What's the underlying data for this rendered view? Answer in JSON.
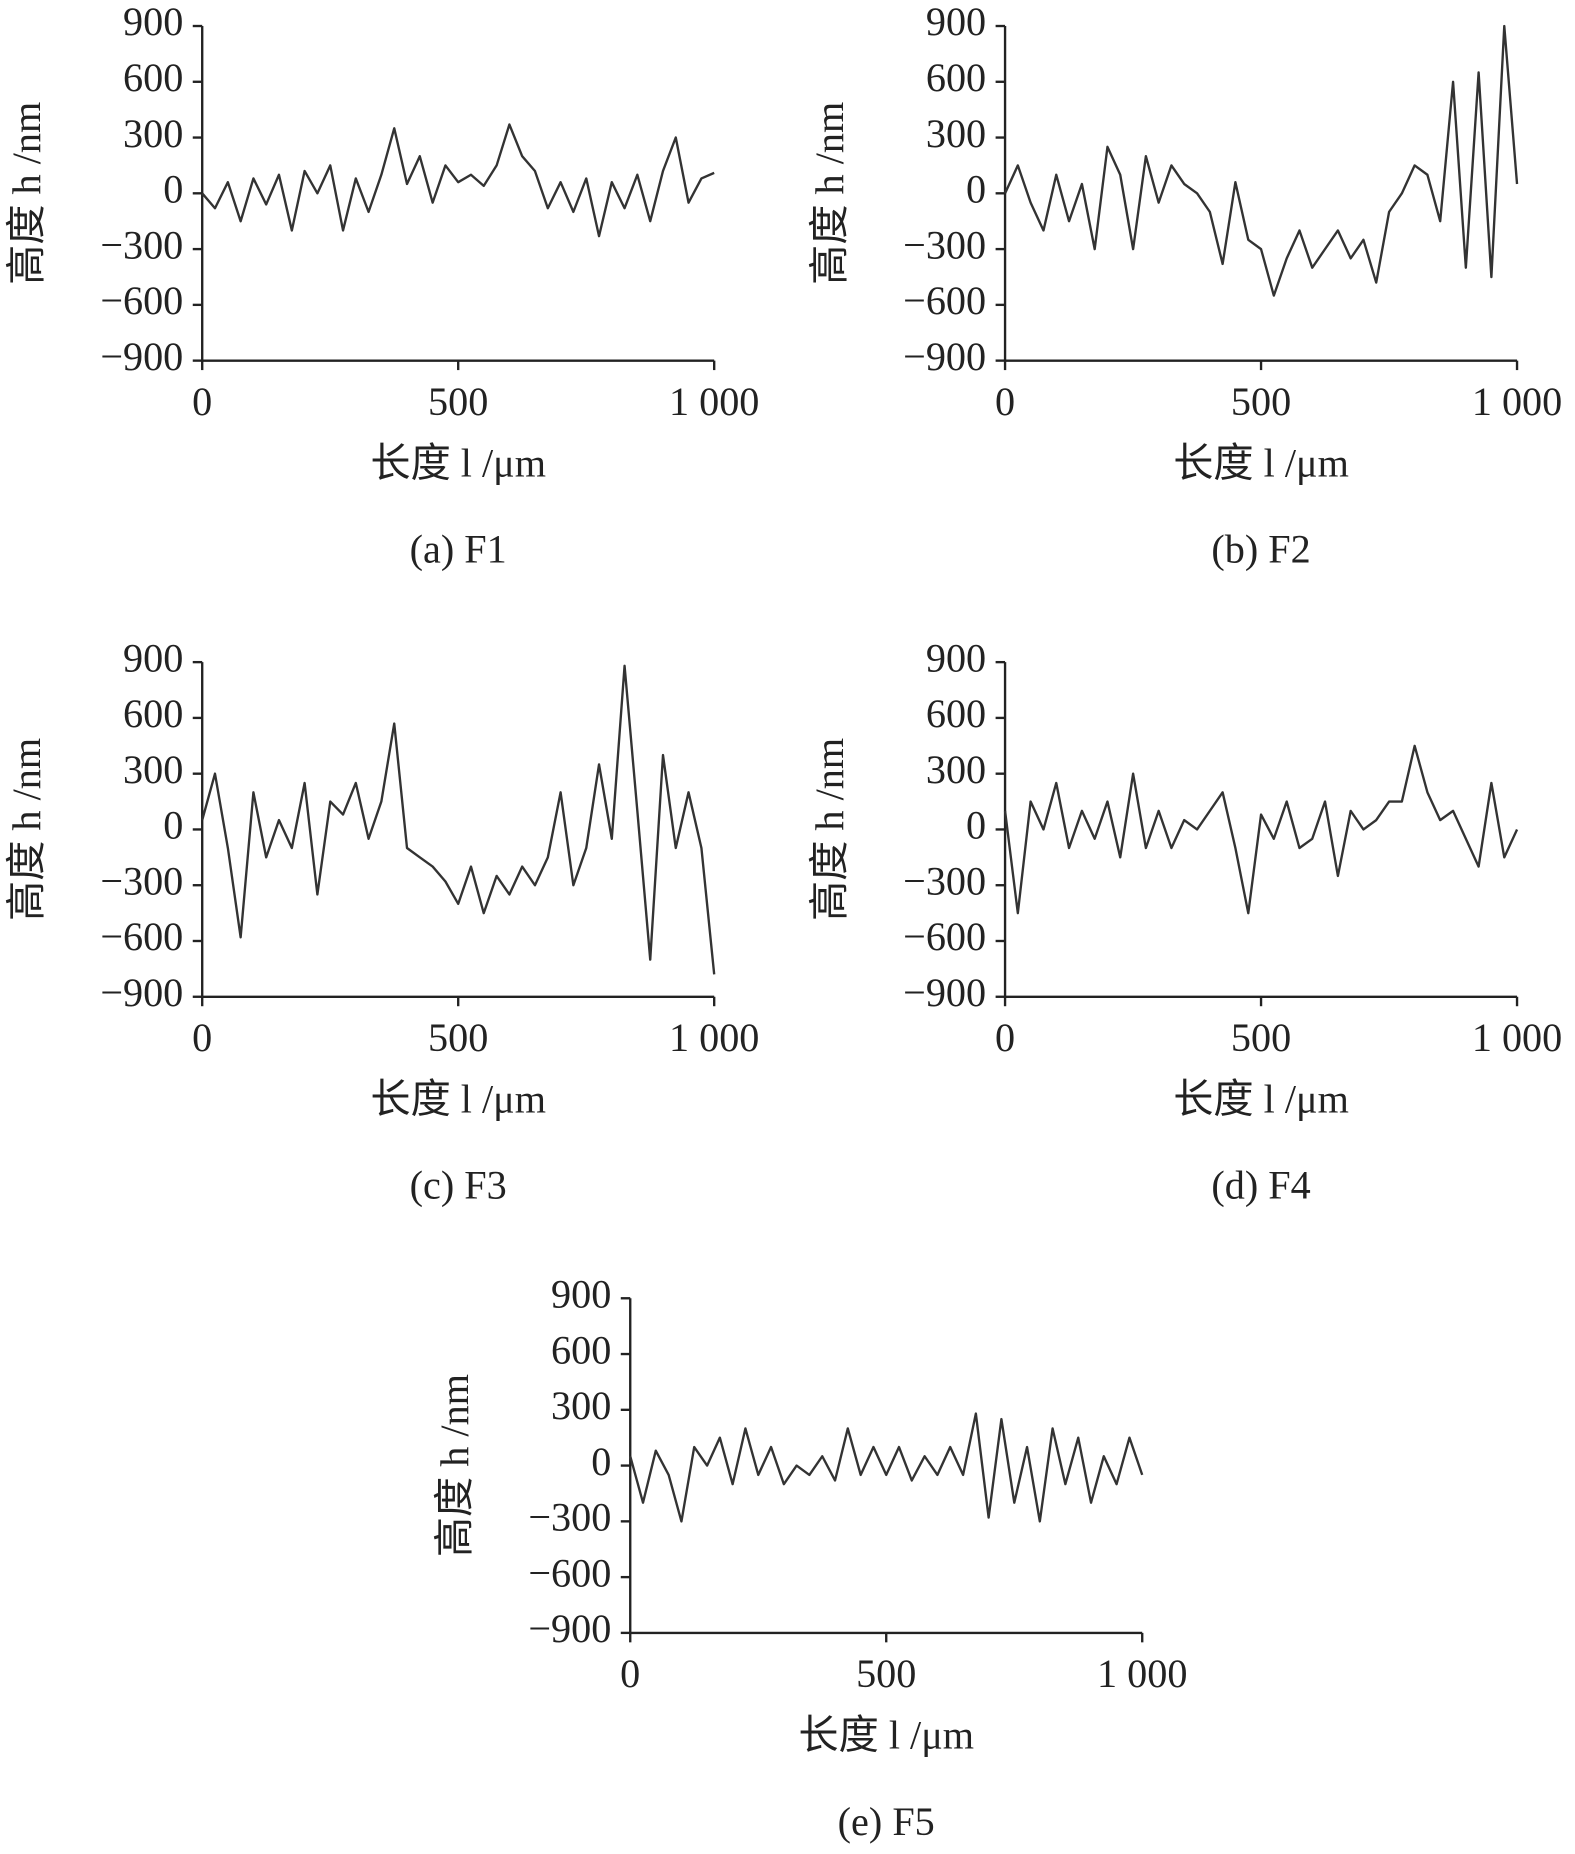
{
  "chart_data": [
    {
      "type": "line",
      "title": "(a) F1",
      "xlabel": "长度 l /μm",
      "ylabel": "高度 h /nm",
      "xlim": [
        0,
        1000
      ],
      "ylim": [
        -900,
        900
      ],
      "xticks": [
        0,
        500,
        {
          "value": 1000,
          "label": "1 000"
        }
      ],
      "yticks": [
        {
          "value": -900,
          "label": "−900"
        },
        {
          "value": -600,
          "label": "−600"
        },
        {
          "value": -300,
          "label": "−300"
        },
        0,
        300,
        600,
        900
      ],
      "x": [
        0,
        25,
        50,
        75,
        100,
        125,
        150,
        175,
        200,
        225,
        250,
        275,
        300,
        325,
        350,
        375,
        400,
        425,
        450,
        475,
        500,
        525,
        550,
        575,
        600,
        625,
        650,
        675,
        700,
        725,
        750,
        775,
        800,
        825,
        850,
        875,
        900,
        925,
        950,
        975,
        1000
      ],
      "series": [
        {
          "color": "#333333",
          "values": [
            0,
            -80,
            60,
            -150,
            80,
            -60,
            100,
            -200,
            120,
            0,
            150,
            -200,
            80,
            -100,
            100,
            350,
            50,
            200,
            -50,
            150,
            60,
            100,
            40,
            150,
            370,
            200,
            120,
            -80,
            60,
            -100,
            80,
            -230,
            60,
            -80,
            100,
            -150,
            120,
            300,
            -50,
            80,
            110
          ]
        }
      ]
    },
    {
      "type": "line",
      "title": "(b) F2",
      "xlabel": "长度 l /μm",
      "ylabel": "高度 h /nm",
      "xlim": [
        0,
        1000
      ],
      "ylim": [
        -900,
        900
      ],
      "xticks": [
        0,
        500,
        {
          "value": 1000,
          "label": "1 000"
        }
      ],
      "yticks": [
        {
          "value": -900,
          "label": "−900"
        },
        {
          "value": -600,
          "label": "−600"
        },
        {
          "value": -300,
          "label": "−300"
        },
        0,
        300,
        600,
        900
      ],
      "x": [
        0,
        25,
        50,
        75,
        100,
        125,
        150,
        175,
        200,
        225,
        250,
        275,
        300,
        325,
        350,
        375,
        400,
        425,
        450,
        475,
        500,
        525,
        550,
        575,
        600,
        625,
        650,
        675,
        700,
        725,
        750,
        775,
        800,
        825,
        850,
        875,
        900,
        925,
        950,
        975,
        1000
      ],
      "series": [
        {
          "color": "#333333",
          "values": [
            0,
            150,
            -50,
            -200,
            100,
            -150,
            50,
            -300,
            250,
            100,
            -300,
            200,
            -50,
            150,
            50,
            0,
            -100,
            -380,
            60,
            -250,
            -300,
            -550,
            -350,
            -200,
            -400,
            -300,
            -200,
            -350,
            -250,
            -480,
            -100,
            0,
            150,
            100,
            -150,
            600,
            -400,
            650,
            -450,
            900,
            50
          ]
        }
      ]
    },
    {
      "type": "line",
      "title": "(c) F3",
      "xlabel": "长度 l /μm",
      "ylabel": "高度 h /nm",
      "xlim": [
        0,
        1000
      ],
      "ylim": [
        -900,
        900
      ],
      "xticks": [
        0,
        500,
        {
          "value": 1000,
          "label": "1 000"
        }
      ],
      "yticks": [
        {
          "value": -900,
          "label": "−900"
        },
        {
          "value": -600,
          "label": "−600"
        },
        {
          "value": -300,
          "label": "−300"
        },
        0,
        300,
        600,
        900
      ],
      "x": [
        0,
        25,
        50,
        75,
        100,
        125,
        150,
        175,
        200,
        225,
        250,
        275,
        300,
        325,
        350,
        375,
        400,
        425,
        450,
        475,
        500,
        525,
        550,
        575,
        600,
        625,
        650,
        675,
        700,
        725,
        750,
        775,
        800,
        825,
        850,
        875,
        900,
        925,
        950,
        975,
        1000
      ],
      "series": [
        {
          "color": "#333333",
          "values": [
            50,
            300,
            -100,
            -580,
            200,
            -150,
            50,
            -100,
            250,
            -350,
            150,
            80,
            250,
            -50,
            150,
            570,
            -100,
            -150,
            -200,
            -280,
            -400,
            -200,
            -450,
            -250,
            -350,
            -200,
            -300,
            -150,
            200,
            -300,
            -100,
            350,
            -50,
            880,
            100,
            -700,
            400,
            -100,
            200,
            -100,
            -780
          ]
        }
      ]
    },
    {
      "type": "line",
      "title": "(d) F4",
      "xlabel": "长度 l /μm",
      "ylabel": "高度 h /nm",
      "xlim": [
        0,
        1000
      ],
      "ylim": [
        -900,
        900
      ],
      "xticks": [
        0,
        500,
        {
          "value": 1000,
          "label": "1 000"
        }
      ],
      "yticks": [
        {
          "value": -900,
          "label": "−900"
        },
        {
          "value": -600,
          "label": "−600"
        },
        {
          "value": -300,
          "label": "−300"
        },
        0,
        300,
        600,
        900
      ],
      "x": [
        0,
        25,
        50,
        75,
        100,
        125,
        150,
        175,
        200,
        225,
        250,
        275,
        300,
        325,
        350,
        375,
        400,
        425,
        450,
        475,
        500,
        525,
        550,
        575,
        600,
        625,
        650,
        675,
        700,
        725,
        750,
        775,
        800,
        825,
        850,
        875,
        900,
        925,
        950,
        975,
        1000
      ],
      "series": [
        {
          "color": "#333333",
          "values": [
            100,
            -450,
            150,
            0,
            250,
            -100,
            100,
            -50,
            150,
            -150,
            300,
            -100,
            100,
            -100,
            50,
            0,
            100,
            200,
            -100,
            -450,
            80,
            -50,
            150,
            -100,
            -50,
            150,
            -250,
            100,
            0,
            50,
            150,
            150,
            450,
            200,
            50,
            100,
            -50,
            -200,
            250,
            -150,
            0
          ]
        }
      ]
    },
    {
      "type": "line",
      "title": "(e) F5",
      "xlabel": "长度 l /μm",
      "ylabel": "高度 h /nm",
      "xlim": [
        0,
        1000
      ],
      "ylim": [
        -900,
        900
      ],
      "xticks": [
        0,
        500,
        {
          "value": 1000,
          "label": "1 000"
        }
      ],
      "yticks": [
        {
          "value": -900,
          "label": "−900"
        },
        {
          "value": -600,
          "label": "−600"
        },
        {
          "value": -300,
          "label": "−300"
        },
        0,
        300,
        600,
        900
      ],
      "x": [
        0,
        25,
        50,
        75,
        100,
        125,
        150,
        175,
        200,
        225,
        250,
        275,
        300,
        325,
        350,
        375,
        400,
        425,
        450,
        475,
        500,
        525,
        550,
        575,
        600,
        625,
        650,
        675,
        700,
        725,
        750,
        775,
        800,
        825,
        850,
        875,
        900,
        925,
        950,
        975,
        1000
      ],
      "series": [
        {
          "color": "#333333",
          "values": [
            50,
            -200,
            80,
            -50,
            -300,
            100,
            0,
            150,
            -100,
            200,
            -50,
            100,
            -100,
            0,
            -50,
            50,
            -80,
            200,
            -50,
            100,
            -50,
            100,
            -80,
            50,
            -50,
            100,
            -50,
            280,
            -280,
            250,
            -200,
            100,
            -300,
            200,
            -100,
            150,
            -200,
            50,
            -100,
            150,
            -50
          ]
        }
      ]
    }
  ]
}
